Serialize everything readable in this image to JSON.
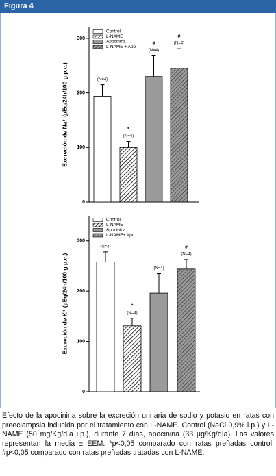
{
  "figure_label": "Figura 4",
  "chart_data": [
    {
      "type": "bar",
      "ylabel": "Excreción de Na⁺ (µEq/24h/100 g p.c.)",
      "ylim": [
        0,
        320
      ],
      "yticks": [
        0,
        100,
        200,
        300
      ],
      "series": [
        {
          "name": "Control",
          "fill": "white",
          "values": [
            194
          ],
          "errors": [
            21
          ],
          "n_label": "(N=4)"
        },
        {
          "name": "L-NAME",
          "fill": "hatch",
          "values": [
            100
          ],
          "errors": [
            11
          ],
          "n_label": "(N=4)",
          "sig": "*"
        },
        {
          "name": "Apocinina",
          "fill": "gray",
          "values": [
            230
          ],
          "errors": [
            38
          ],
          "n_label": "(N=4)",
          "sig": "#"
        },
        {
          "name": "L-NAME + Apo",
          "fill": "gray-hatch",
          "values": [
            245
          ],
          "errors": [
            36
          ],
          "n_label": "(N=4)",
          "sig": "#"
        }
      ]
    },
    {
      "type": "bar",
      "ylabel": "Excreción de K⁺ (µEq/24h/100 g p.c.)",
      "ylim": [
        0,
        350
      ],
      "yticks": [
        0,
        100,
        200,
        300
      ],
      "series": [
        {
          "name": "Control",
          "fill": "white",
          "values": [
            258
          ],
          "errors": [
            20
          ],
          "n_label": "(N=4)"
        },
        {
          "name": "L-NAME",
          "fill": "hatch",
          "values": [
            131
          ],
          "errors": [
            15
          ],
          "n_label": "(N=4)",
          "sig": "*"
        },
        {
          "name": "Apocinina",
          "fill": "gray",
          "values": [
            196
          ],
          "errors": [
            39
          ],
          "n_label": "(N=4)"
        },
        {
          "name": "L-NAME+ Apo",
          "fill": "gray-hatch",
          "values": [
            244
          ],
          "errors": [
            19
          ],
          "n_label": "(N=4)",
          "sig": "#"
        }
      ]
    }
  ],
  "caption": "Efecto de la apocinina sobre la excreción urinaria de sodio y potasio en ratas con preeclampsia inducida por el tratamiento con L-NAME. Control (NaCl 0,9% i.p.) y L-NAME (50 mg/Kg/día i.p.), durante 7 días, apocinina (33 µg/Kg/día). Los valores representan la media ± EEM. *p<0,05 comparado con ratas preñadas control. #p<0,05 comparado con ratas preñadas tratadas con L-NAME."
}
